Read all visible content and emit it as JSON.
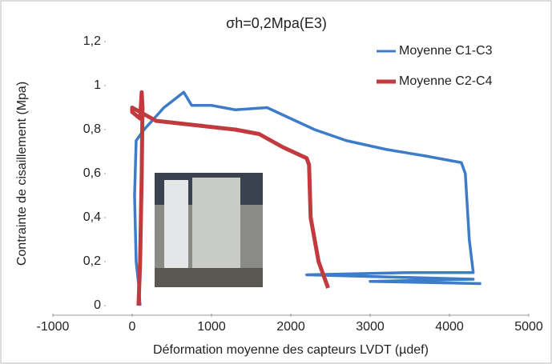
{
  "chart_data": {
    "type": "line",
    "title": "σh=0,2Mpa(E3)",
    "x_label": "Déformation moyenne des capteurs LVDT (µdef)",
    "y_label": "Contrainte de cisaillement (Mpa)",
    "xlim": [
      -1000,
      5000
    ],
    "xticks": [
      -1000,
      0,
      1000,
      2000,
      3000,
      4000,
      5000
    ],
    "ylim": [
      0,
      1.2
    ],
    "yticks": [
      0,
      {
        "value": 0.2,
        "label": "0,2"
      },
      {
        "value": 0.4,
        "label": "0,4"
      },
      {
        "value": 0.6,
        "label": "0,6"
      },
      {
        "value": 0.8,
        "label": "0,8"
      },
      1,
      {
        "value": 1.2,
        "label": "1,2"
      }
    ],
    "grid": false,
    "legend": "upper right",
    "series": [
      {
        "name": "Moyenne C1-C3",
        "color": "#3d7cc9",
        "x": [
          100,
          80,
          50,
          30,
          50,
          150,
          400,
          650,
          750,
          1000,
          1300,
          1700,
          2000,
          2300,
          2700,
          3200,
          3700,
          4150,
          4200,
          4250,
          4300,
          3500,
          2200,
          4300,
          3000,
          4400
        ],
        "values": [
          0,
          0.1,
          0.2,
          0.5,
          0.75,
          0.8,
          0.9,
          0.97,
          0.91,
          0.91,
          0.89,
          0.9,
          0.85,
          0.8,
          0.75,
          0.71,
          0.68,
          0.65,
          0.6,
          0.3,
          0.15,
          0.15,
          0.14,
          0.12,
          0.11,
          0.1
        ]
      },
      {
        "name": "Moyenne C2-C4",
        "color": "#c23a3d",
        "x": [
          80,
          100,
          120,
          130,
          120,
          100,
          0,
          0,
          300,
          800,
          1300,
          1600,
          1900,
          2200,
          2230,
          2250,
          2350,
          2450,
          2470
        ],
        "values": [
          0,
          0.2,
          0.6,
          0.9,
          0.97,
          0.85,
          0.88,
          0.9,
          0.84,
          0.82,
          0.8,
          0.78,
          0.72,
          0.67,
          0.64,
          0.4,
          0.2,
          0.1,
          0.08
        ]
      }
    ]
  }
}
